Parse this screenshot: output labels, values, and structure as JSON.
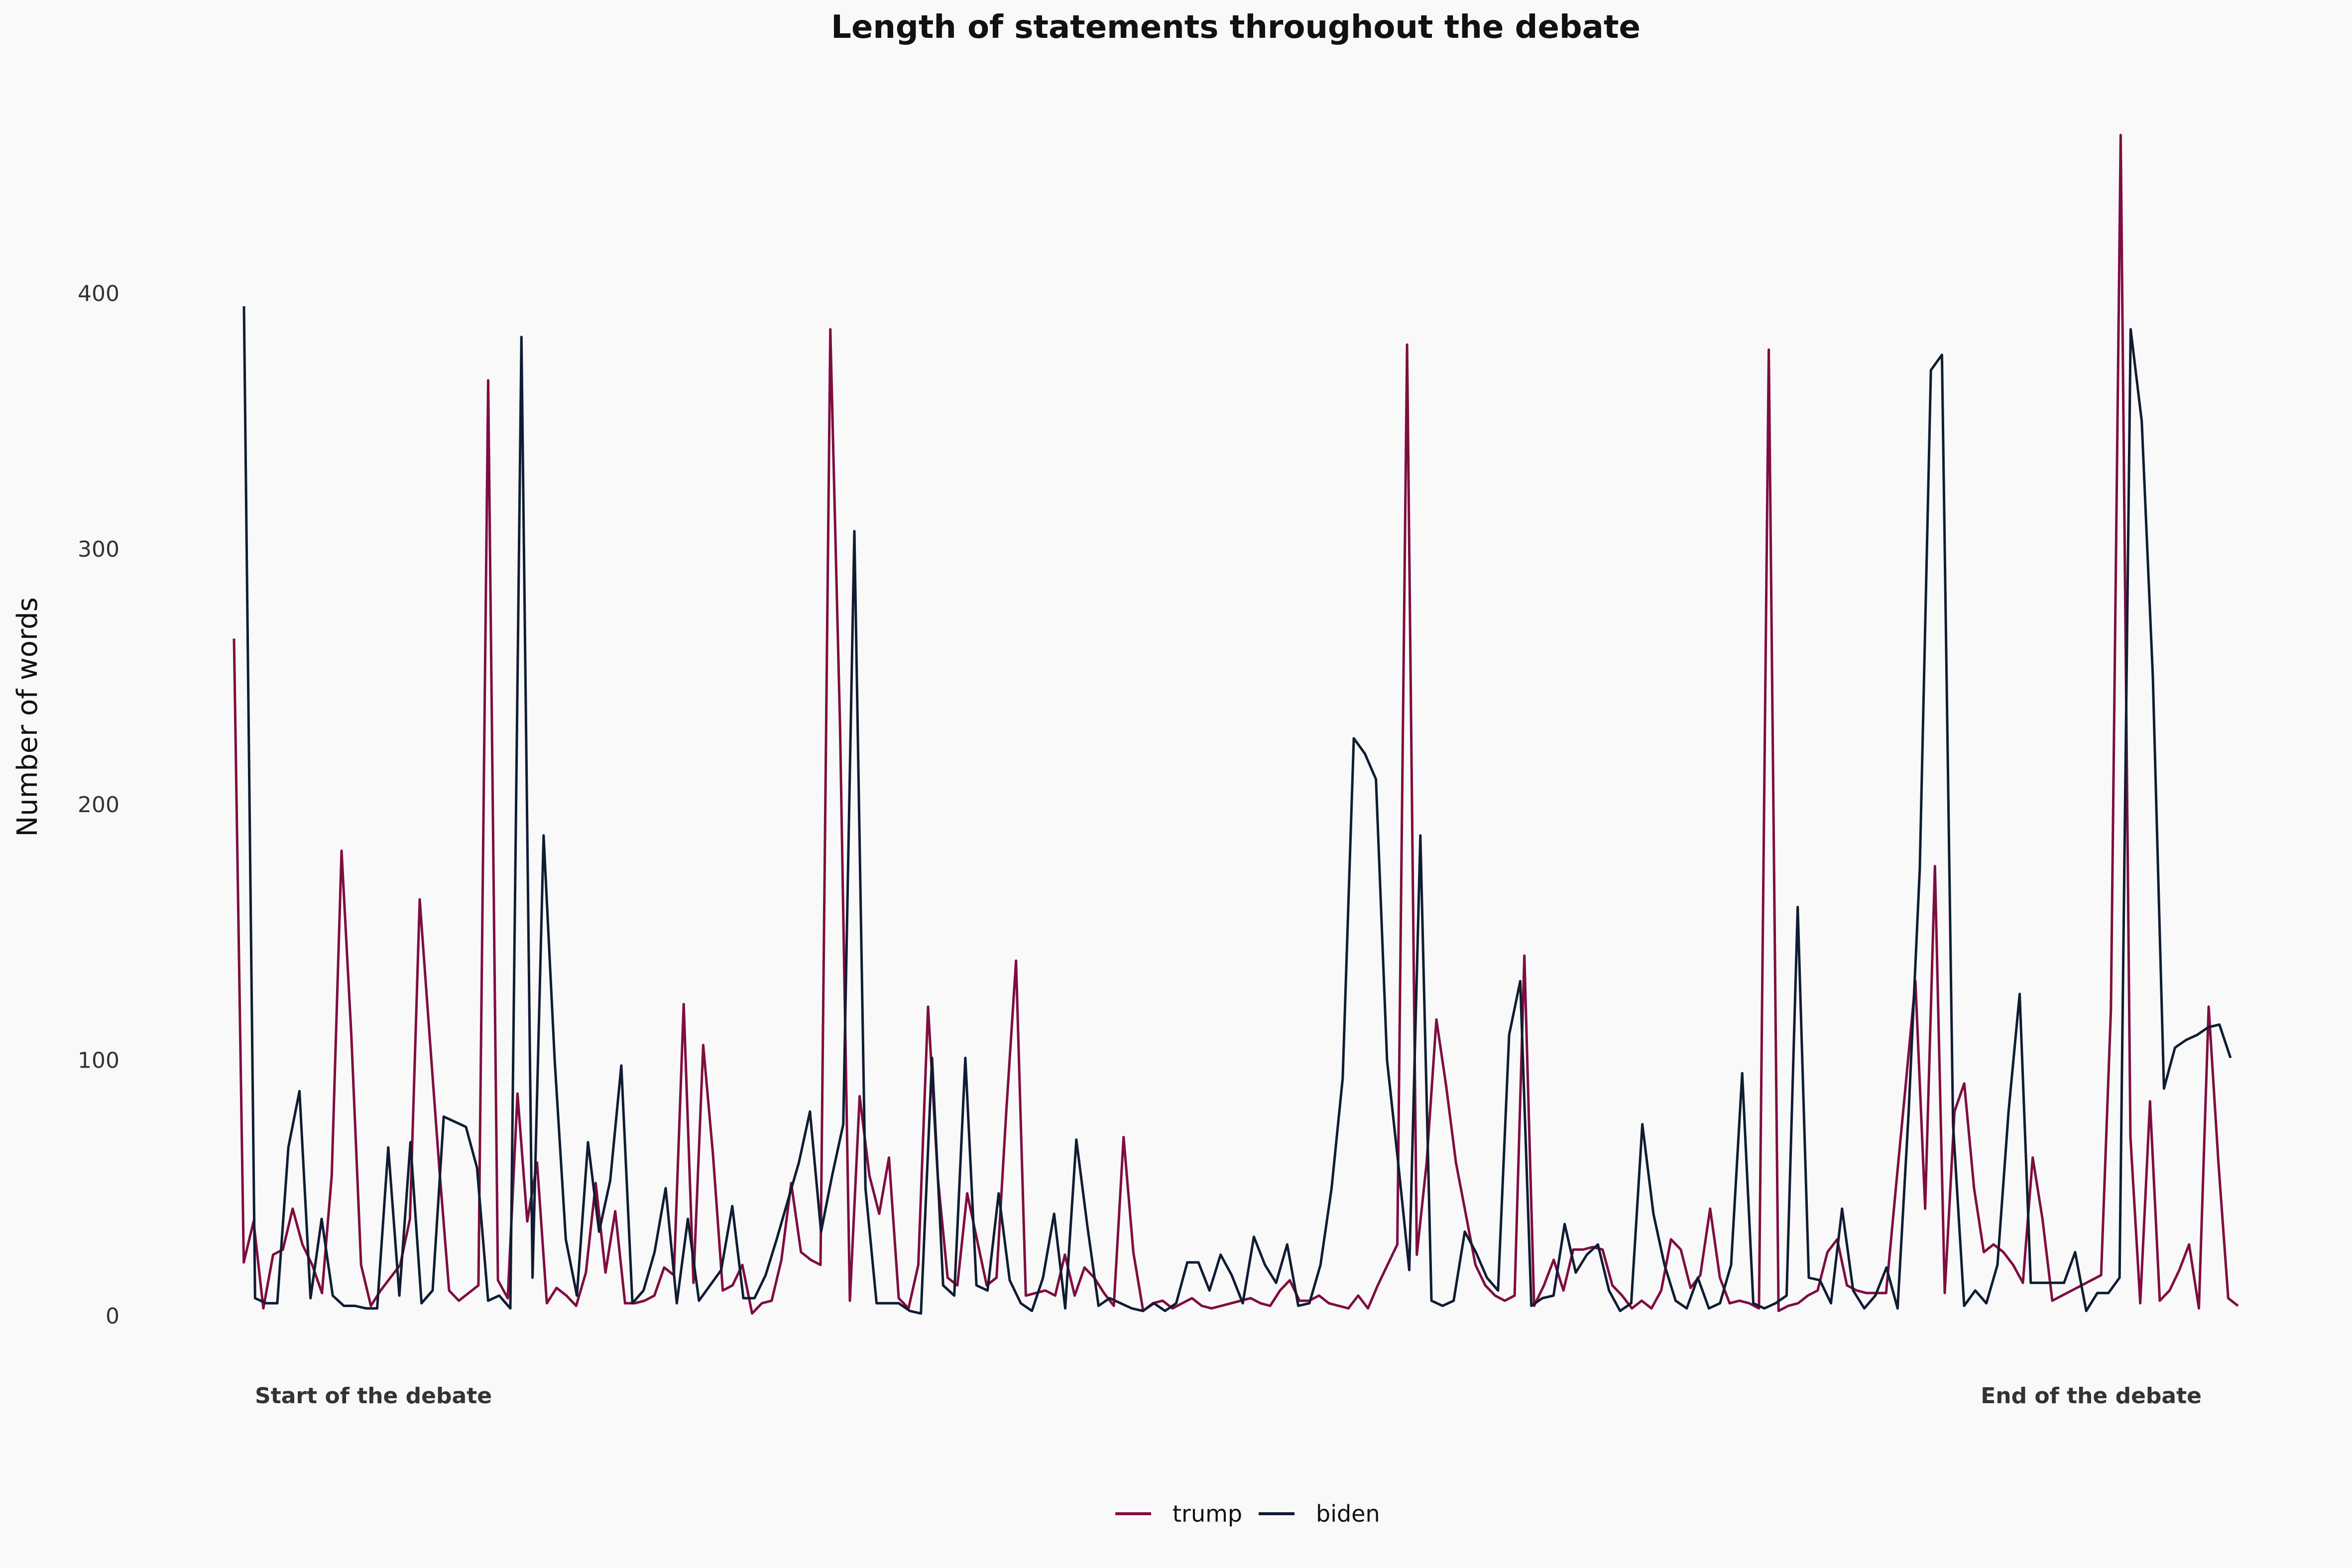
{
  "chart_data": {
    "type": "line",
    "title": "Length of statements throughout the debate",
    "xlabel": "",
    "ylabel": "Number of words",
    "ylim": [
      0,
      470
    ],
    "yticks": [
      0,
      100,
      200,
      300,
      400
    ],
    "grid": false,
    "legend_position": "bottom",
    "annotations": [
      {
        "id": "start",
        "text": "Start of the debate"
      },
      {
        "id": "end",
        "text": "End of the debate"
      }
    ],
    "series": [
      {
        "name": "trump",
        "color": "#7f0d3f",
        "values": [
          265,
          21,
          37,
          3,
          24,
          26,
          42,
          28,
          20,
          9,
          55,
          182,
          110,
          20,
          4,
          10,
          15,
          20,
          38,
          163,
          110,
          58,
          10,
          6,
          9,
          12,
          366,
          14,
          7,
          87,
          37,
          60,
          5,
          11,
          8,
          4,
          17,
          52,
          17,
          41,
          5,
          5,
          6,
          8,
          19,
          16,
          122,
          13,
          106,
          63,
          10,
          12,
          20,
          1,
          5,
          6,
          22,
          52,
          25,
          22,
          20,
          386,
          230,
          6,
          86,
          55,
          40,
          62,
          7,
          3,
          20,
          121,
          54,
          15,
          12,
          48,
          30,
          12,
          15,
          80,
          139,
          8,
          9,
          10,
          8,
          24,
          8,
          19,
          15,
          9,
          4,
          70,
          25,
          2,
          5,
          6,
          3,
          5,
          7,
          4,
          3,
          4,
          5,
          6,
          7,
          5,
          4,
          10,
          14,
          6,
          6,
          8,
          5,
          4,
          3,
          8,
          3,
          12,
          20,
          28,
          380,
          24,
          60,
          116,
          90,
          60,
          40,
          20,
          12,
          8,
          6,
          8,
          141,
          4,
          12,
          22,
          10,
          26,
          26,
          27,
          26,
          12,
          8,
          3,
          6,
          3,
          10,
          30,
          26,
          11,
          16,
          42,
          15,
          5,
          6,
          5,
          3,
          378,
          2,
          4,
          5,
          8,
          10,
          25,
          30,
          12,
          10,
          9,
          9,
          9,
          50,
          90,
          131,
          42,
          176,
          9,
          80,
          91,
          50,
          25,
          28,
          25,
          20,
          13,
          62,
          38,
          6,
          8,
          10,
          12,
          14,
          16,
          120,
          462,
          70,
          5,
          84,
          6,
          10,
          18,
          28,
          3,
          121,
          60,
          7,
          4
        ]
      },
      {
        "name": "biden",
        "color": "#0f1d33",
        "values": [
          395,
          7,
          5,
          5,
          66,
          88,
          7,
          38,
          8,
          4,
          4,
          3,
          3,
          66,
          8,
          68,
          5,
          10,
          78,
          76,
          74,
          58,
          6,
          8,
          3,
          383,
          15,
          188,
          100,
          30,
          8,
          68,
          33,
          53,
          98,
          5,
          10,
          25,
          50,
          5,
          38,
          6,
          12,
          18,
          43,
          7,
          7,
          16,
          30,
          45,
          60,
          80,
          33,
          55,
          75,
          307,
          50,
          5,
          5,
          5,
          2,
          1,
          101,
          12,
          8,
          101,
          12,
          10,
          48,
          14,
          5,
          2,
          15,
          40,
          3,
          69,
          35,
          4,
          7,
          5,
          3,
          2,
          5,
          2,
          5,
          21,
          21,
          10,
          24,
          16,
          5,
          31,
          20,
          13,
          28,
          4,
          5,
          20,
          50,
          93,
          226,
          220,
          210,
          100,
          60,
          18,
          188,
          6,
          4,
          6,
          33,
          25,
          15,
          10,
          110,
          131,
          4,
          7,
          8,
          36,
          17,
          24,
          28,
          10,
          2,
          5,
          75,
          40,
          20,
          6,
          3,
          15,
          3,
          5,
          20,
          95,
          5,
          3,
          5,
          8,
          160,
          15,
          14,
          5,
          42,
          10,
          3,
          8,
          19,
          3,
          80,
          175,
          370,
          376,
          75,
          4,
          10,
          5,
          20,
          80,
          126,
          13,
          13,
          13,
          13,
          25,
          2,
          9,
          9,
          15,
          386,
          350,
          250,
          89,
          105,
          108,
          110,
          113,
          114,
          101
        ]
      }
    ]
  }
}
